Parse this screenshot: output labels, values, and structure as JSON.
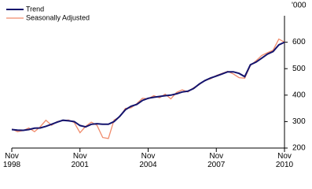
{
  "chart_data": {
    "type": "line",
    "y_unit": "'000",
    "x": [
      "1998-11",
      "1999-02",
      "1999-05",
      "1999-08",
      "1999-11",
      "2000-02",
      "2000-05",
      "2000-08",
      "2000-11",
      "2001-02",
      "2001-05",
      "2001-08",
      "2001-11",
      "2002-02",
      "2002-05",
      "2002-08",
      "2002-11",
      "2003-02",
      "2003-05",
      "2003-08",
      "2003-11",
      "2004-02",
      "2004-05",
      "2004-08",
      "2004-11",
      "2005-02",
      "2005-05",
      "2005-08",
      "2005-11",
      "2006-02",
      "2006-05",
      "2006-08",
      "2006-11",
      "2007-02",
      "2007-05",
      "2007-08",
      "2007-11",
      "2008-02",
      "2008-05",
      "2008-08",
      "2008-11",
      "2009-02",
      "2009-05",
      "2009-08",
      "2009-11",
      "2010-02",
      "2010-05",
      "2010-08",
      "2010-11"
    ],
    "series": [
      {
        "name": "Trend",
        "color": "#14146e",
        "values": [
          270,
          268,
          267,
          270,
          275,
          276,
          282,
          290,
          298,
          305,
          303,
          300,
          285,
          280,
          290,
          292,
          290,
          290,
          300,
          320,
          345,
          358,
          365,
          380,
          388,
          392,
          395,
          398,
          400,
          405,
          412,
          415,
          425,
          442,
          455,
          465,
          472,
          480,
          488,
          488,
          482,
          470,
          515,
          525,
          540,
          555,
          565,
          590,
          600
        ]
      },
      {
        "name": "Seasonally Adjusted",
        "color": "#f08a6a",
        "values": [
          272,
          262,
          266,
          276,
          262,
          280,
          305,
          286,
          300,
          304,
          306,
          296,
          258,
          282,
          298,
          286,
          240,
          236,
          306,
          318,
          350,
          352,
          368,
          388,
          386,
          398,
          390,
          404,
          386,
          410,
          420,
          412,
          428,
          440,
          456,
          462,
          474,
          482,
          490,
          480,
          466,
          464,
          512,
          530,
          550,
          560,
          570,
          612,
          600
        ]
      }
    ],
    "xlim": [
      "1998-11",
      "2010-11"
    ],
    "xticks": [
      {
        "value": "1998-11",
        "label": "Nov 1998"
      },
      {
        "value": "2001-11",
        "label": "Nov 2001"
      },
      {
        "value": "2004-11",
        "label": "Nov 2004"
      },
      {
        "value": "2007-11",
        "label": "Nov 2007"
      },
      {
        "value": "2010-11",
        "label": "Nov 2010"
      }
    ],
    "ylim": [
      200,
      700
    ],
    "yticks": [
      200,
      300,
      400,
      500,
      600
    ],
    "legend": "top-left"
  }
}
